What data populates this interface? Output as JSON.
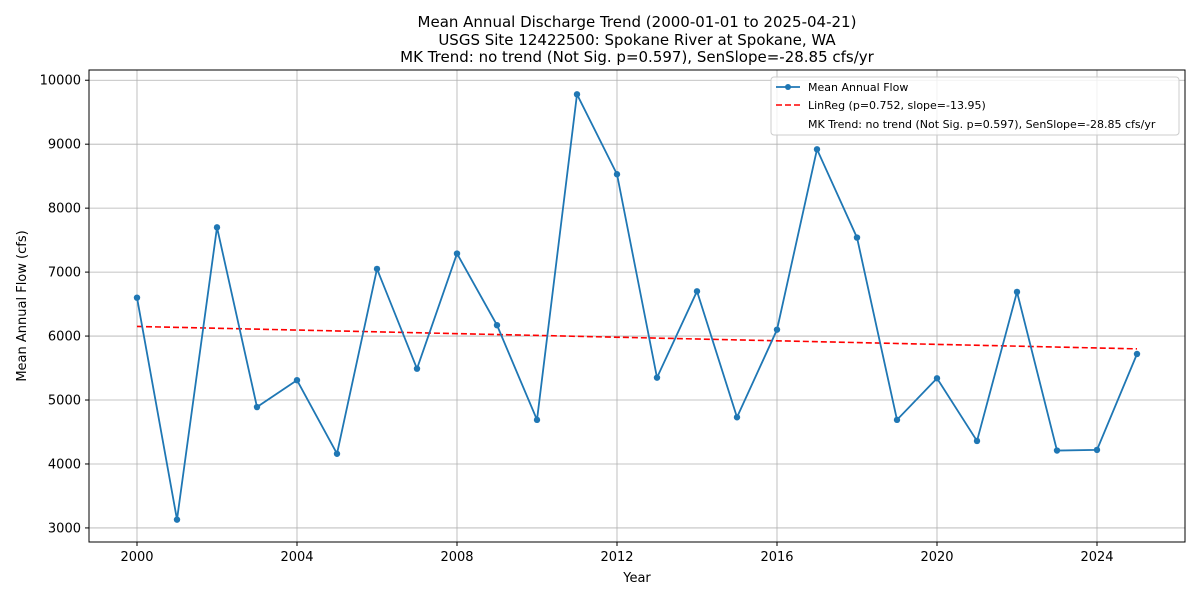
{
  "chart_data": {
    "type": "line",
    "title": [
      "Mean Annual Discharge Trend (2000-01-01 to 2025-04-21)",
      "USGS Site 12422500: Spokane River at Spokane, WA",
      "MK Trend: no trend (Not Sig. p=0.597), SenSlope=-28.85 cfs/yr"
    ],
    "xlabel": "Year",
    "ylabel": "Mean Annual Flow (cfs)",
    "xlim": [
      1998.8,
      2026.2
    ],
    "ylim": [
      2780,
      10160
    ],
    "xticks": [
      2000,
      2004,
      2008,
      2012,
      2016,
      2020,
      2024
    ],
    "yticks": [
      3000,
      4000,
      5000,
      6000,
      7000,
      8000,
      9000,
      10000
    ],
    "grid": true,
    "legend_position": "upper right",
    "series": [
      {
        "name": "Mean Annual Flow",
        "color": "#1f77b4",
        "style": "solid-with-markers",
        "x": [
          2000,
          2001,
          2002,
          2003,
          2004,
          2005,
          2006,
          2007,
          2008,
          2009,
          2010,
          2011,
          2012,
          2013,
          2014,
          2015,
          2016,
          2017,
          2018,
          2019,
          2020,
          2021,
          2022,
          2023,
          2024,
          2025
        ],
        "y": [
          6600,
          3130,
          7700,
          4890,
          5310,
          4160,
          7050,
          5490,
          7290,
          6170,
          4690,
          9780,
          8530,
          5350,
          6700,
          4730,
          6100,
          8920,
          7540,
          4690,
          5340,
          4360,
          6690,
          4210,
          4220,
          5720
        ]
      },
      {
        "name": "LinReg (p=0.752, slope=-13.95)",
        "color": "#ff0000",
        "style": "dashed",
        "x": [
          2000,
          2025
        ],
        "y": [
          6150,
          5800
        ]
      }
    ],
    "legend_entries": [
      "Mean Annual Flow",
      "LinReg (p=0.752, slope=-13.95)",
      "MK Trend: no trend (Not Sig. p=0.597), SenSlope=-28.85 cfs/yr"
    ]
  }
}
